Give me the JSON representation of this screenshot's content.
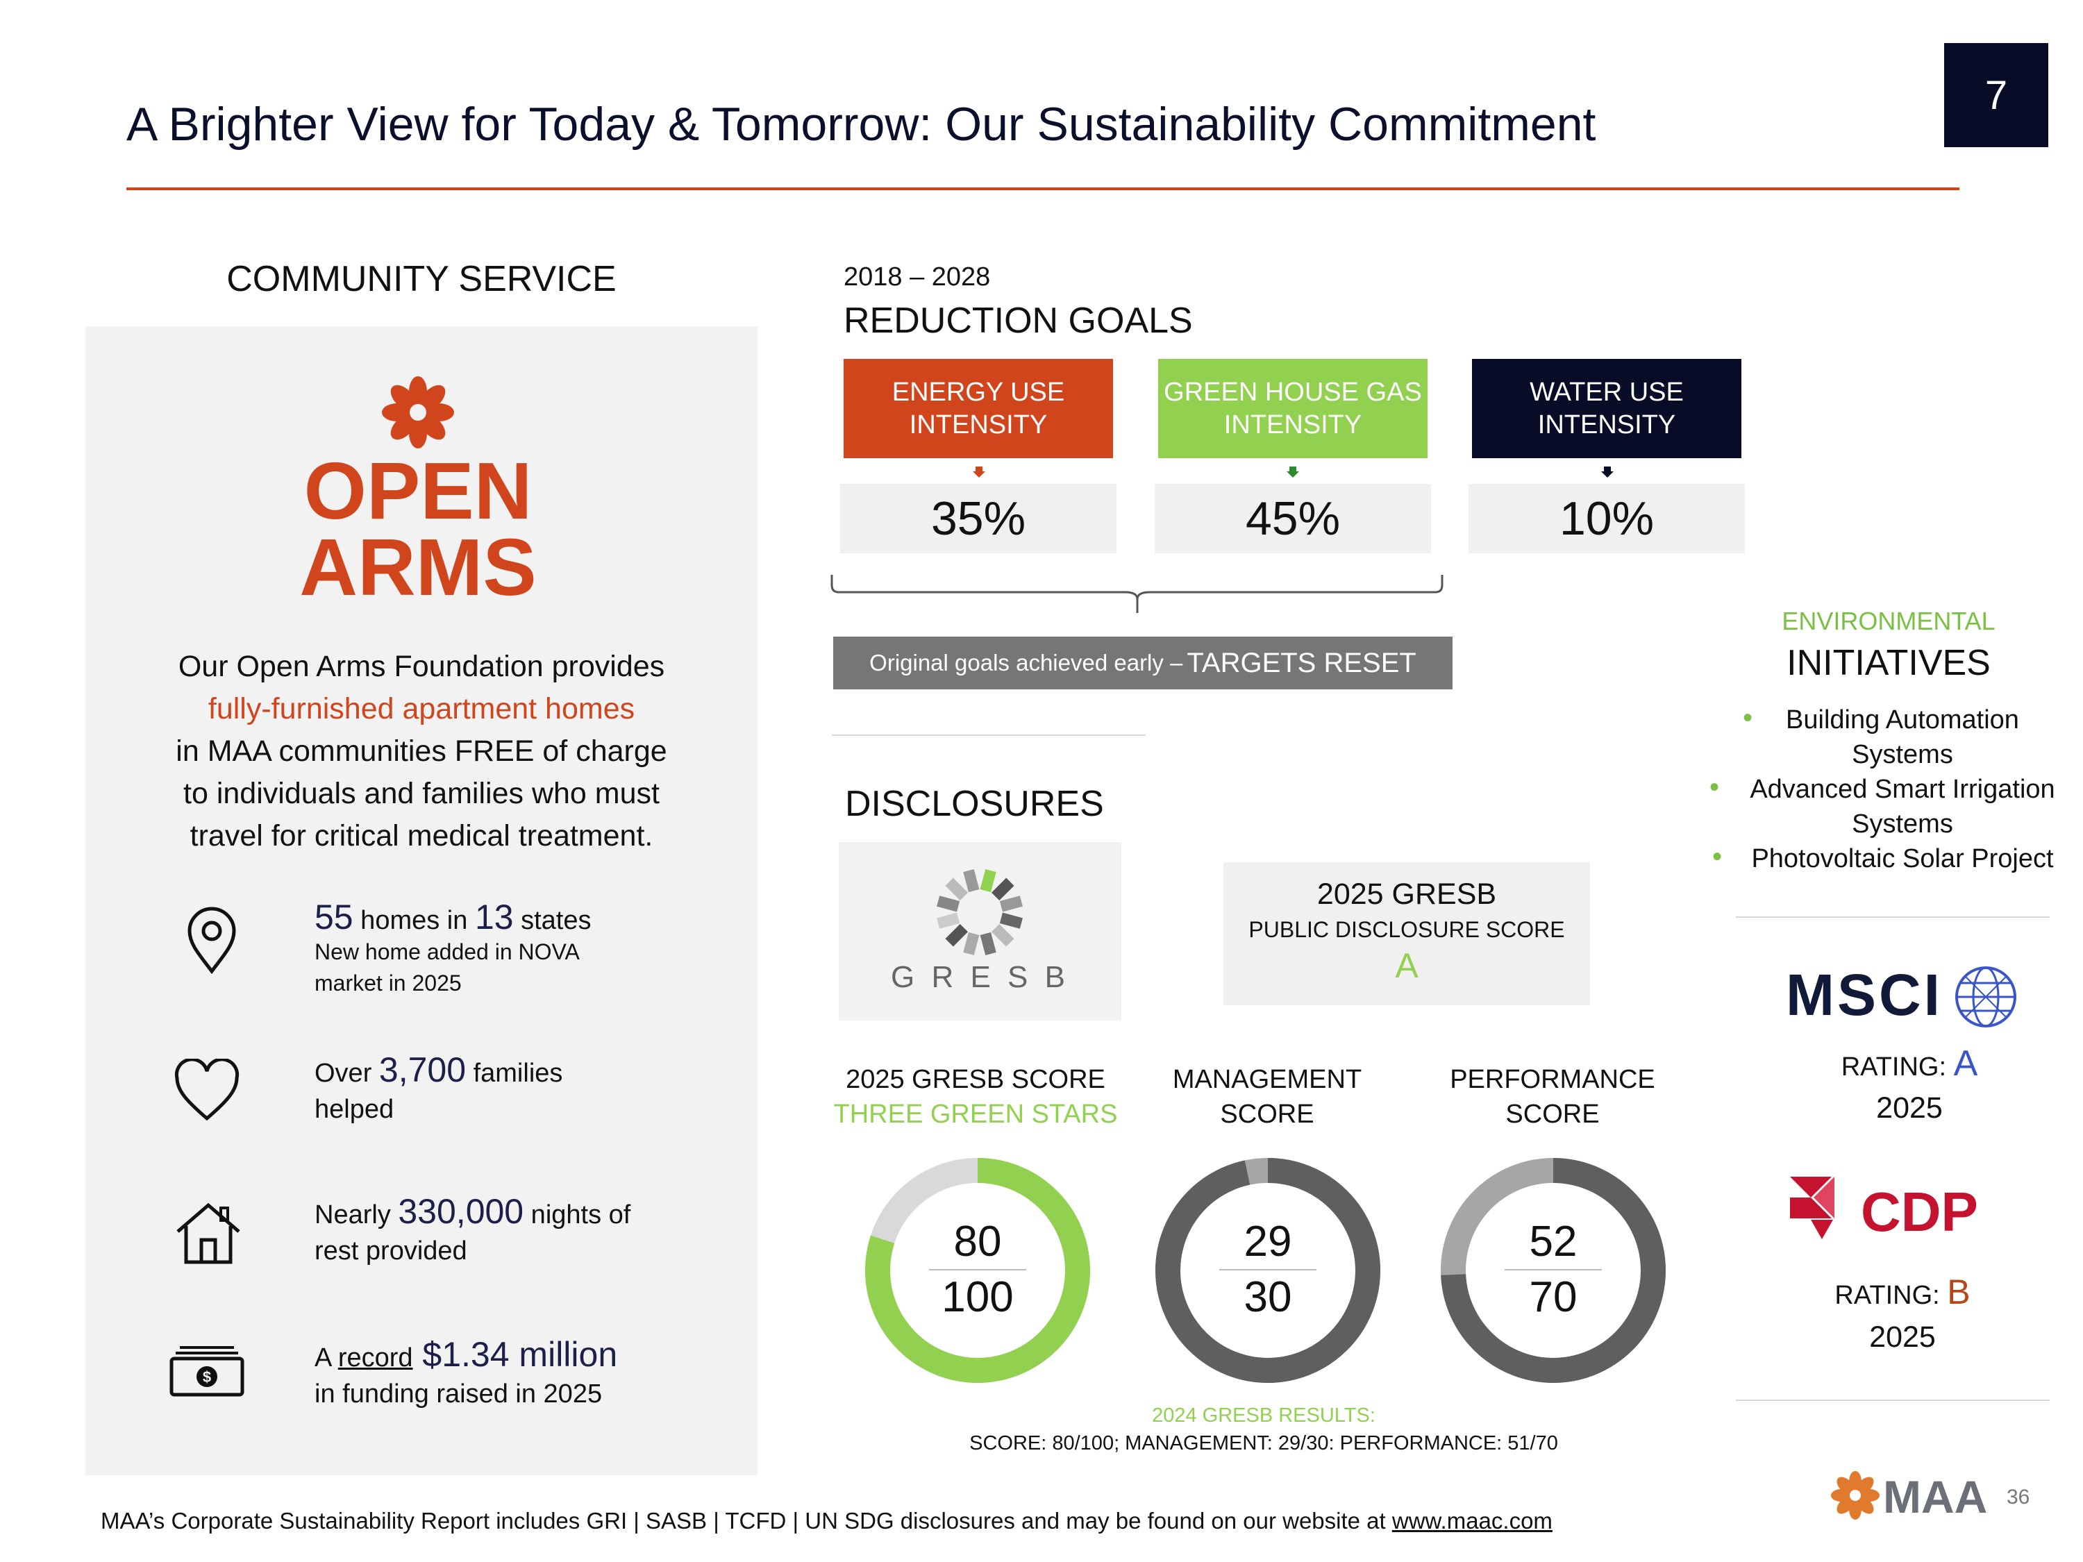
{
  "header": {
    "title": "A Brighter View for Today & Tomorrow: Our Sustainability Commitment",
    "slide_number": "7"
  },
  "community": {
    "heading": "COMMUNITY SERVICE",
    "logo_line1": "OPEN",
    "logo_line2": "ARMS",
    "desc_line1": "Our Open Arms Foundation provides",
    "desc_highlight": "fully-furnished apartment homes",
    "desc_line3": "in MAA communities FREE of charge",
    "desc_line4": "to individuals and families who must",
    "desc_line5": "travel for critical medical treatment.",
    "stats": [
      {
        "icon": "location-pin-icon",
        "big1": "55",
        "t1": " homes in ",
        "big2": "13",
        "t2": " states",
        "sub1": "New home added in NOVA",
        "sub2": "market in 2025"
      },
      {
        "icon": "heart-icon",
        "pre": "Over ",
        "big": "3,700",
        "post": " families",
        "line2": "helped"
      },
      {
        "icon": "house-icon",
        "pre": "Nearly ",
        "big": "330,000",
        "post": " nights of",
        "line2": "rest provided"
      },
      {
        "icon": "money-icon",
        "pre": "A ",
        "underline": "record",
        "big": " $1.34 million",
        "line2": "in funding raised in 2025"
      }
    ]
  },
  "reduction": {
    "years": "2018 – 2028",
    "heading": "REDUCTION GOALS",
    "goals": [
      {
        "line1": "ENERGY USE",
        "line2": "INTENSITY",
        "value": "35%",
        "color": "#d0451b"
      },
      {
        "line1": "GREEN HOUSE GAS",
        "line2": "INTENSITY",
        "value": "45%",
        "color": "#92d050"
      },
      {
        "line1": "WATER USE",
        "line2": "INTENSITY",
        "value": "10%",
        "color": "#080c26"
      }
    ],
    "reset_small": "Original goals achieved early – ",
    "reset_big": "TARGETS RESET"
  },
  "disclosures": {
    "heading": "DISCLOSURES",
    "gresb_logo_text": "G R E S B",
    "public_year": "2025 GRESB",
    "public_label": "PUBLIC DISCLOSURE SCORE",
    "public_grade": "A",
    "donuts": [
      {
        "label1": "2025 GRESB SCORE",
        "label2": "THREE GREEN STARS",
        "score": "80",
        "max": "100",
        "value": 80,
        "total": 100,
        "color": "#92d050",
        "track": "#d9d9d9"
      },
      {
        "label1": "MANAGEMENT",
        "label2": "SCORE",
        "score": "29",
        "max": "30",
        "value": 29,
        "total": 30,
        "color": "#5f5f5f",
        "track": "#a6a6a6"
      },
      {
        "label1": "PERFORMANCE",
        "label2": "SCORE",
        "score": "52",
        "max": "70",
        "value": 52,
        "total": 70,
        "color": "#5f5f5f",
        "track": "#a6a6a6"
      }
    ],
    "results_title": "2024 GRESB RESULTS:",
    "results_text": "SCORE: 80/100; MANAGEMENT: 29/30: PERFORMANCE: 51/70"
  },
  "initiatives": {
    "label_small": "ENVIRONMENTAL",
    "label_big": "INITIATIVES",
    "items": [
      {
        "l1": "Building Automation",
        "l2": "Systems"
      },
      {
        "l1": "Advanced Smart Irrigation",
        "l2": "Systems"
      },
      {
        "l1": "Photovoltaic Solar Project",
        "l2": ""
      }
    ]
  },
  "ratings": {
    "msci_logo": "MSCI",
    "msci_label": "RATING: ",
    "msci_grade": "A",
    "msci_year": "2025",
    "cdp_logo": "CDP",
    "cdp_label": "RATING: ",
    "cdp_grade": "B",
    "cdp_year": "2025"
  },
  "footer": {
    "text": "MAA’s Corporate Sustainability Report includes GRI | SASB | TCFD | UN SDG disclosures and may be found on our website at ",
    "link": "www.maac.com",
    "maa_logo": "MAA",
    "page": "36"
  }
}
